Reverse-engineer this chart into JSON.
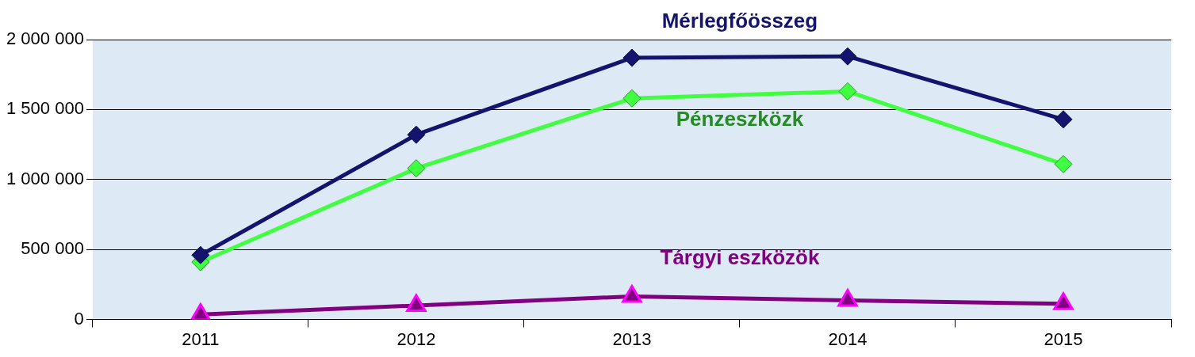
{
  "chart_data": {
    "type": "line",
    "categories": [
      "2011",
      "2012",
      "2013",
      "2014",
      "2015"
    ],
    "series": [
      {
        "name": "Mérlegfőösszeg",
        "color": "#14146e",
        "marker": "diamond",
        "values": [
          460000,
          1320000,
          1870000,
          1880000,
          1430000
        ]
      },
      {
        "name": "Pénzeszközk",
        "color": "#40ff40",
        "marker": "diamond",
        "values": [
          410000,
          1080000,
          1580000,
          1630000,
          1110000
        ]
      },
      {
        "name": "Tárgyi eszközök",
        "color": "#800080",
        "marker": "triangle",
        "values": [
          35000,
          100000,
          165000,
          136000,
          112000
        ]
      }
    ],
    "ylim": [
      0,
      2000000
    ],
    "yticks": [
      0,
      500000,
      1000000,
      1500000,
      2000000
    ],
    "grid": "y",
    "legend": false
  }
}
